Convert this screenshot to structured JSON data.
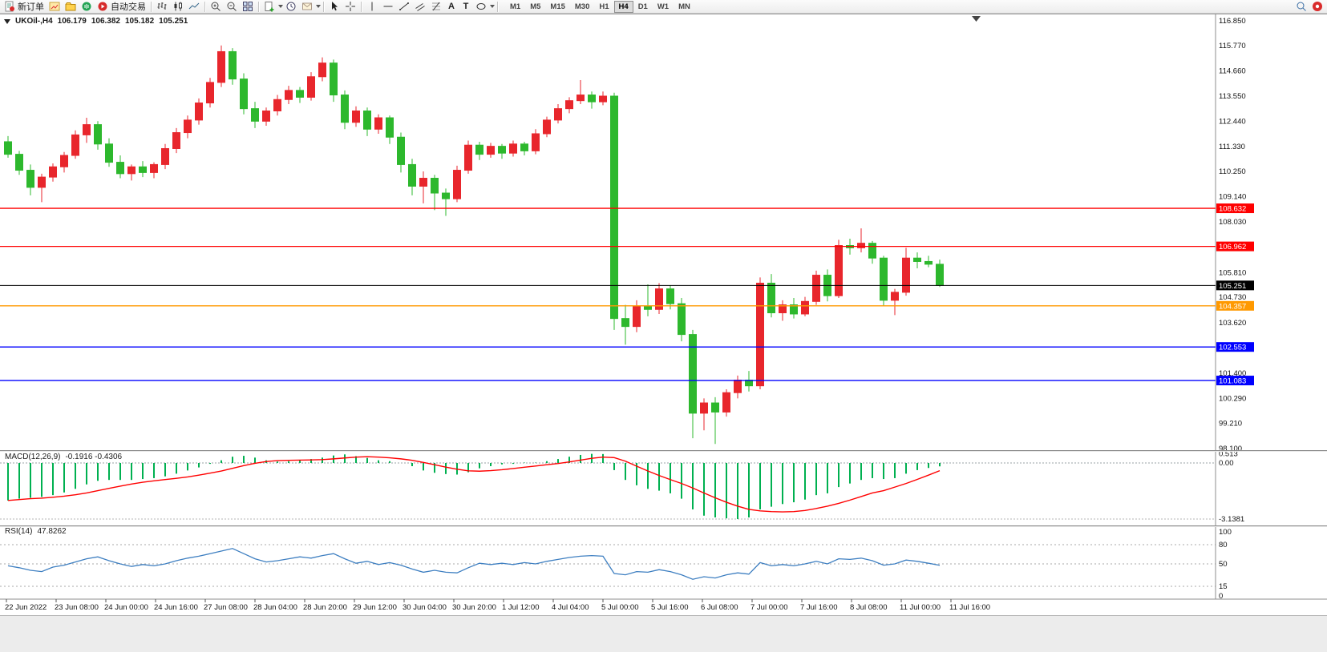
{
  "toolbar": {
    "new_order": "新订单",
    "auto_trading": "自动交易",
    "text_tool": "A",
    "label_tool": "T",
    "timeframes": [
      "M1",
      "M5",
      "M15",
      "M30",
      "H1",
      "H4",
      "D1",
      "W1",
      "MN"
    ],
    "active_timeframe": "H4"
  },
  "chart": {
    "info": {
      "symbol_period": "UKOil-,H4",
      "open": "106.179",
      "high": "106.382",
      "low": "105.182",
      "close": "105.251"
    }
  },
  "chart_data": {
    "type": "candlestick",
    "symbol": "UKOil-",
    "timeframe": "H4",
    "title": "UKOil-,H4",
    "up_color": "#e8262c",
    "down_color": "#2db82d",
    "y_range": [
      98.1,
      116.85
    ],
    "price_axis_labels": [
      "116.850",
      "115.770",
      "114.660",
      "113.550",
      "112.440",
      "111.330",
      "110.250",
      "109.140",
      "108.030",
      "105.810",
      "104.730",
      "103.620",
      "101.400",
      "100.290",
      "99.210",
      "98.100"
    ],
    "time_labels": [
      "22 Jun 2022",
      "23 Jun 08:00",
      "24 Jun 00:00",
      "24 Jun 16:00",
      "27 Jun 08:00",
      "28 Jun 04:00",
      "28 Jun 20:00",
      "29 Jun 12:00",
      "30 Jun 04:00",
      "30 Jun 20:00",
      "1 Jul 12:00",
      "4 Jul 04:00",
      "5 Jul 00:00",
      "5 Jul 16:00",
      "6 Jul 08:00",
      "7 Jul 00:00",
      "7 Jul 16:00",
      "8 Jul 08:00",
      "11 Jul 00:00",
      "11 Jul 16:00"
    ],
    "levels": [
      {
        "price": 108.632,
        "label": "108.632",
        "color": "#ff0000",
        "kind": "resistance"
      },
      {
        "price": 106.962,
        "label": "106.962",
        "color": "#ff0000",
        "kind": "resistance"
      },
      {
        "price": 105.251,
        "label": "105.251",
        "color": "#000000",
        "kind": "current-price"
      },
      {
        "price": 104.357,
        "label": "104.357",
        "color": "#ff9900",
        "kind": "level"
      },
      {
        "price": 102.553,
        "label": "102.553",
        "color": "#0000ff",
        "kind": "support"
      },
      {
        "price": 101.083,
        "label": "101.083",
        "color": "#0000ff",
        "kind": "support"
      }
    ],
    "candles": [
      [
        111.55,
        111.8,
        110.85,
        111.0
      ],
      [
        111.0,
        111.15,
        110.1,
        110.3
      ],
      [
        110.3,
        110.55,
        109.2,
        109.55
      ],
      [
        109.55,
        110.15,
        108.9,
        110.0
      ],
      [
        110.0,
        110.6,
        109.8,
        110.45
      ],
      [
        110.45,
        111.1,
        110.2,
        110.95
      ],
      [
        110.95,
        112.05,
        110.8,
        111.85
      ],
      [
        111.85,
        112.6,
        111.5,
        112.3
      ],
      [
        112.3,
        112.45,
        111.2,
        111.45
      ],
      [
        111.45,
        111.7,
        110.45,
        110.65
      ],
      [
        110.65,
        110.95,
        109.95,
        110.15
      ],
      [
        110.15,
        110.55,
        109.85,
        110.45
      ],
      [
        110.45,
        110.7,
        110.0,
        110.2
      ],
      [
        110.2,
        110.65,
        109.95,
        110.55
      ],
      [
        110.55,
        111.45,
        110.35,
        111.25
      ],
      [
        111.25,
        112.15,
        111.05,
        111.95
      ],
      [
        111.95,
        112.7,
        111.7,
        112.5
      ],
      [
        112.5,
        113.45,
        112.3,
        113.25
      ],
      [
        113.25,
        114.35,
        113.05,
        114.15
      ],
      [
        114.15,
        115.77,
        113.95,
        115.5
      ],
      [
        115.5,
        115.65,
        114.05,
        114.3
      ],
      [
        114.3,
        114.55,
        112.75,
        113.0
      ],
      [
        113.0,
        113.3,
        112.15,
        112.45
      ],
      [
        112.45,
        113.05,
        112.25,
        112.9
      ],
      [
        112.9,
        113.6,
        112.7,
        113.4
      ],
      [
        113.4,
        114.0,
        113.2,
        113.8
      ],
      [
        113.8,
        113.95,
        113.25,
        113.5
      ],
      [
        113.5,
        114.6,
        113.35,
        114.4
      ],
      [
        114.4,
        115.25,
        114.2,
        115.0
      ],
      [
        115.0,
        115.15,
        113.3,
        113.6
      ],
      [
        113.6,
        113.8,
        112.1,
        112.4
      ],
      [
        112.4,
        113.1,
        112.2,
        112.9
      ],
      [
        112.9,
        113.05,
        111.8,
        112.1
      ],
      [
        112.1,
        112.75,
        111.9,
        112.6
      ],
      [
        112.6,
        112.7,
        111.45,
        111.75
      ],
      [
        111.75,
        111.95,
        110.2,
        110.55
      ],
      [
        110.55,
        110.8,
        109.2,
        109.6
      ],
      [
        109.6,
        110.25,
        108.85,
        109.95
      ],
      [
        109.95,
        110.1,
        108.55,
        109.3
      ],
      [
        109.3,
        109.5,
        108.3,
        109.05
      ],
      [
        109.05,
        110.5,
        108.9,
        110.3
      ],
      [
        110.3,
        111.6,
        110.15,
        111.4
      ],
      [
        111.4,
        111.55,
        110.75,
        111.0
      ],
      [
        111.0,
        111.5,
        110.85,
        111.35
      ],
      [
        111.35,
        111.45,
        110.8,
        111.05
      ],
      [
        111.05,
        111.6,
        110.9,
        111.45
      ],
      [
        111.45,
        111.55,
        110.95,
        111.15
      ],
      [
        111.15,
        112.1,
        111.0,
        111.9
      ],
      [
        111.9,
        112.65,
        111.75,
        112.5
      ],
      [
        112.5,
        113.2,
        112.35,
        113.0
      ],
      [
        113.0,
        113.5,
        112.8,
        113.35
      ],
      [
        113.35,
        114.25,
        113.2,
        113.6
      ],
      [
        113.6,
        113.75,
        113.0,
        113.3
      ],
      [
        113.3,
        113.75,
        113.15,
        113.55
      ],
      [
        113.55,
        113.7,
        103.3,
        103.8
      ],
      [
        103.8,
        104.4,
        102.65,
        103.45
      ],
      [
        103.45,
        104.6,
        103.2,
        104.35
      ],
      [
        104.35,
        105.3,
        103.9,
        104.2
      ],
      [
        104.2,
        105.35,
        104.0,
        105.1
      ],
      [
        105.1,
        105.25,
        104.2,
        104.45
      ],
      [
        104.45,
        104.7,
        102.8,
        103.1
      ],
      [
        103.1,
        103.3,
        98.55,
        99.65
      ],
      [
        99.65,
        100.3,
        98.9,
        100.1
      ],
      [
        100.1,
        100.35,
        98.3,
        99.7
      ],
      [
        99.7,
        100.7,
        99.5,
        100.55
      ],
      [
        100.55,
        101.3,
        100.3,
        101.1
      ],
      [
        101.1,
        101.5,
        100.6,
        100.85
      ],
      [
        100.85,
        105.6,
        100.7,
        105.35
      ],
      [
        105.35,
        105.75,
        103.85,
        104.05
      ],
      [
        104.05,
        104.6,
        103.7,
        104.4
      ],
      [
        104.4,
        104.7,
        103.8,
        104.0
      ],
      [
        104.0,
        104.75,
        103.9,
        104.55
      ],
      [
        104.55,
        105.9,
        104.4,
        105.7
      ],
      [
        105.7,
        105.95,
        104.55,
        104.8
      ],
      [
        104.8,
        107.25,
        104.7,
        107.0
      ],
      [
        107.0,
        107.3,
        106.6,
        106.9
      ],
      [
        106.9,
        107.75,
        106.7,
        107.1
      ],
      [
        107.1,
        107.2,
        106.2,
        106.45
      ],
      [
        106.45,
        106.55,
        104.35,
        104.6
      ],
      [
        104.6,
        105.1,
        103.95,
        104.95
      ],
      [
        104.95,
        106.9,
        104.8,
        106.45
      ],
      [
        106.45,
        106.7,
        106.0,
        106.3
      ],
      [
        106.3,
        106.55,
        106.05,
        106.18
      ],
      [
        106.179,
        106.382,
        105.182,
        105.251
      ]
    ],
    "macd": {
      "label": "MACD(12,26,9)",
      "display": "-0.1916 -0.4306",
      "axis_labels": [
        "0.513",
        "0.00",
        "-3.1381"
      ],
      "range": [
        -3.3,
        0.6
      ],
      "histogram_color": "#00b050",
      "signal_color": "#ff0000",
      "histogram": [
        -2.1,
        -2.0,
        -1.95,
        -1.9,
        -1.8,
        -1.65,
        -1.45,
        -1.2,
        -1.0,
        -0.95,
        -0.95,
        -0.95,
        -0.9,
        -0.85,
        -0.75,
        -0.6,
        -0.42,
        -0.25,
        -0.05,
        0.15,
        0.35,
        0.4,
        0.3,
        0.15,
        0.08,
        0.1,
        0.18,
        0.22,
        0.3,
        0.42,
        0.48,
        0.38,
        0.28,
        0.15,
        0.1,
        0.0,
        -0.18,
        -0.42,
        -0.55,
        -0.62,
        -0.65,
        -0.52,
        -0.3,
        -0.18,
        -0.08,
        -0.05,
        0.02,
        0.02,
        0.1,
        0.22,
        0.35,
        0.45,
        0.51,
        0.5,
        -0.4,
        -0.95,
        -1.25,
        -1.45,
        -1.55,
        -1.7,
        -2.0,
        -2.6,
        -2.95,
        -3.05,
        -3.1,
        -3.14,
        -3.05,
        -2.6,
        -2.45,
        -2.3,
        -2.2,
        -2.05,
        -1.8,
        -1.7,
        -1.35,
        -1.15,
        -0.95,
        -0.85,
        -0.9,
        -0.85,
        -0.6,
        -0.4,
        -0.28,
        -0.19
      ],
      "signal": [
        -2.1,
        -2.05,
        -2.0,
        -1.97,
        -1.92,
        -1.86,
        -1.78,
        -1.68,
        -1.55,
        -1.42,
        -1.3,
        -1.18,
        -1.08,
        -1.0,
        -0.93,
        -0.86,
        -0.78,
        -0.68,
        -0.57,
        -0.45,
        -0.3,
        -0.15,
        -0.02,
        0.08,
        0.13,
        0.15,
        0.16,
        0.17,
        0.19,
        0.23,
        0.28,
        0.33,
        0.35,
        0.33,
        0.29,
        0.23,
        0.15,
        0.03,
        -0.1,
        -0.23,
        -0.35,
        -0.44,
        -0.46,
        -0.43,
        -0.38,
        -0.31,
        -0.24,
        -0.17,
        -0.1,
        -0.03,
        0.06,
        0.16,
        0.26,
        0.33,
        0.3,
        0.1,
        -0.18,
        -0.45,
        -0.7,
        -0.93,
        -1.15,
        -1.4,
        -1.68,
        -1.95,
        -2.2,
        -2.42,
        -2.6,
        -2.68,
        -2.72,
        -2.74,
        -2.72,
        -2.66,
        -2.55,
        -2.42,
        -2.26,
        -2.08,
        -1.88,
        -1.68,
        -1.55,
        -1.35,
        -1.15,
        -0.92,
        -0.68,
        -0.43
      ]
    },
    "rsi": {
      "label": "RSI(14)",
      "display": "47.8262",
      "axis_labels": [
        "100",
        "80",
        "50",
        "15",
        "0"
      ],
      "levels": [
        80,
        50,
        15
      ],
      "range": [
        0,
        100
      ],
      "color": "#3e7fc1",
      "series": [
        47,
        44,
        40,
        38,
        45,
        48,
        53,
        58,
        61,
        55,
        50,
        46,
        49,
        47,
        50,
        55,
        59,
        62,
        66,
        70,
        74,
        66,
        58,
        53,
        55,
        58,
        61,
        59,
        63,
        66,
        58,
        51,
        54,
        49,
        52,
        48,
        42,
        37,
        40,
        37,
        36,
        44,
        51,
        49,
        51,
        49,
        52,
        50,
        54,
        57,
        60,
        62,
        63,
        62,
        35,
        33,
        38,
        37,
        41,
        38,
        33,
        26,
        30,
        28,
        33,
        36,
        34,
        52,
        47,
        49,
        47,
        50,
        54,
        50,
        58,
        57,
        59,
        55,
        48,
        50,
        56,
        54,
        51,
        47.8
      ]
    }
  }
}
